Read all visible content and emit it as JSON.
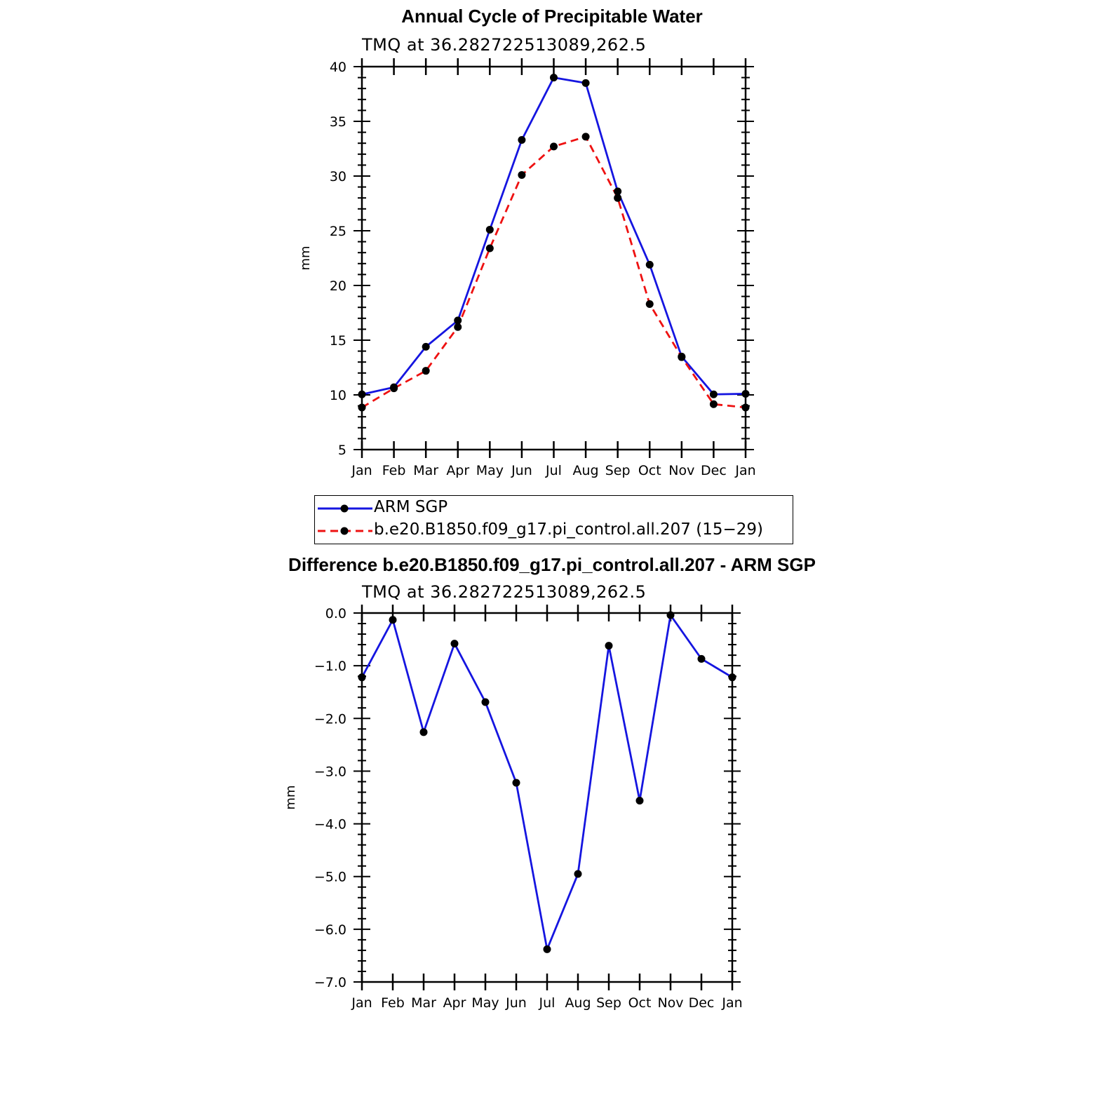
{
  "chart_data": [
    {
      "type": "line",
      "title": "Annual Cycle of Precipitable Water",
      "subtitle": "TMQ at 36.282722513089,262.5",
      "xlabel": "",
      "ylabel": "mm",
      "categories": [
        "Jan",
        "Feb",
        "Mar",
        "Apr",
        "May",
        "Jun",
        "Jul",
        "Aug",
        "Sep",
        "Oct",
        "Nov",
        "Dec",
        "Jan"
      ],
      "ylim": [
        5,
        40
      ],
      "yticks": [
        "5",
        "10",
        "15",
        "20",
        "25",
        "30",
        "35",
        "40"
      ],
      "ytick_values": [
        5,
        10,
        15,
        20,
        25,
        30,
        35,
        40
      ],
      "series": [
        {
          "name": "ARM SGP",
          "color": "#1515e0",
          "dash": "solid",
          "values": [
            10.05,
            10.7,
            14.4,
            16.8,
            25.1,
            33.3,
            39.0,
            38.5,
            28.6,
            21.9,
            13.5,
            10.05,
            10.1
          ]
        },
        {
          "name": "b.e20.B1850.f09_g17.pi_control.all.207 (15-29)",
          "color": "#ee1111",
          "dash": "dashed",
          "values": [
            8.85,
            10.6,
            12.2,
            16.2,
            23.4,
            30.1,
            32.7,
            33.6,
            28.0,
            18.3,
            13.45,
            9.15,
            8.85
          ]
        }
      ]
    },
    {
      "type": "line",
      "title": "Difference b.e20.B1850.f09_g17.pi_control.all.207 - ARM SGP",
      "subtitle": "TMQ at 36.282722513089,262.5",
      "xlabel": "",
      "ylabel": "mm",
      "categories": [
        "Jan",
        "Feb",
        "Mar",
        "Apr",
        "May",
        "Jun",
        "Jul",
        "Aug",
        "Sep",
        "Oct",
        "Nov",
        "Dec",
        "Jan"
      ],
      "ylim": [
        -7.0,
        0.0
      ],
      "yticks": [
        "0.0",
        "−1.0",
        "−2.0",
        "−3.0",
        "−4.0",
        "−5.0",
        "−6.0",
        "−7.0"
      ],
      "ytick_values": [
        0,
        -1,
        -2,
        -3,
        -4,
        -5,
        -6,
        -7
      ],
      "series": [
        {
          "name": "Difference",
          "color": "#1515e0",
          "dash": "solid",
          "values": [
            -1.22,
            -0.13,
            -2.26,
            -0.58,
            -1.69,
            -3.22,
            -6.38,
            -4.95,
            -0.62,
            -3.56,
            -0.04,
            -0.87,
            -1.22
          ]
        }
      ]
    }
  ],
  "legend": {
    "items": [
      {
        "label": "ARM SGP"
      },
      {
        "label": "b.e20.B1850.f09_g17.pi_control.all.207 (15−29)"
      }
    ]
  }
}
